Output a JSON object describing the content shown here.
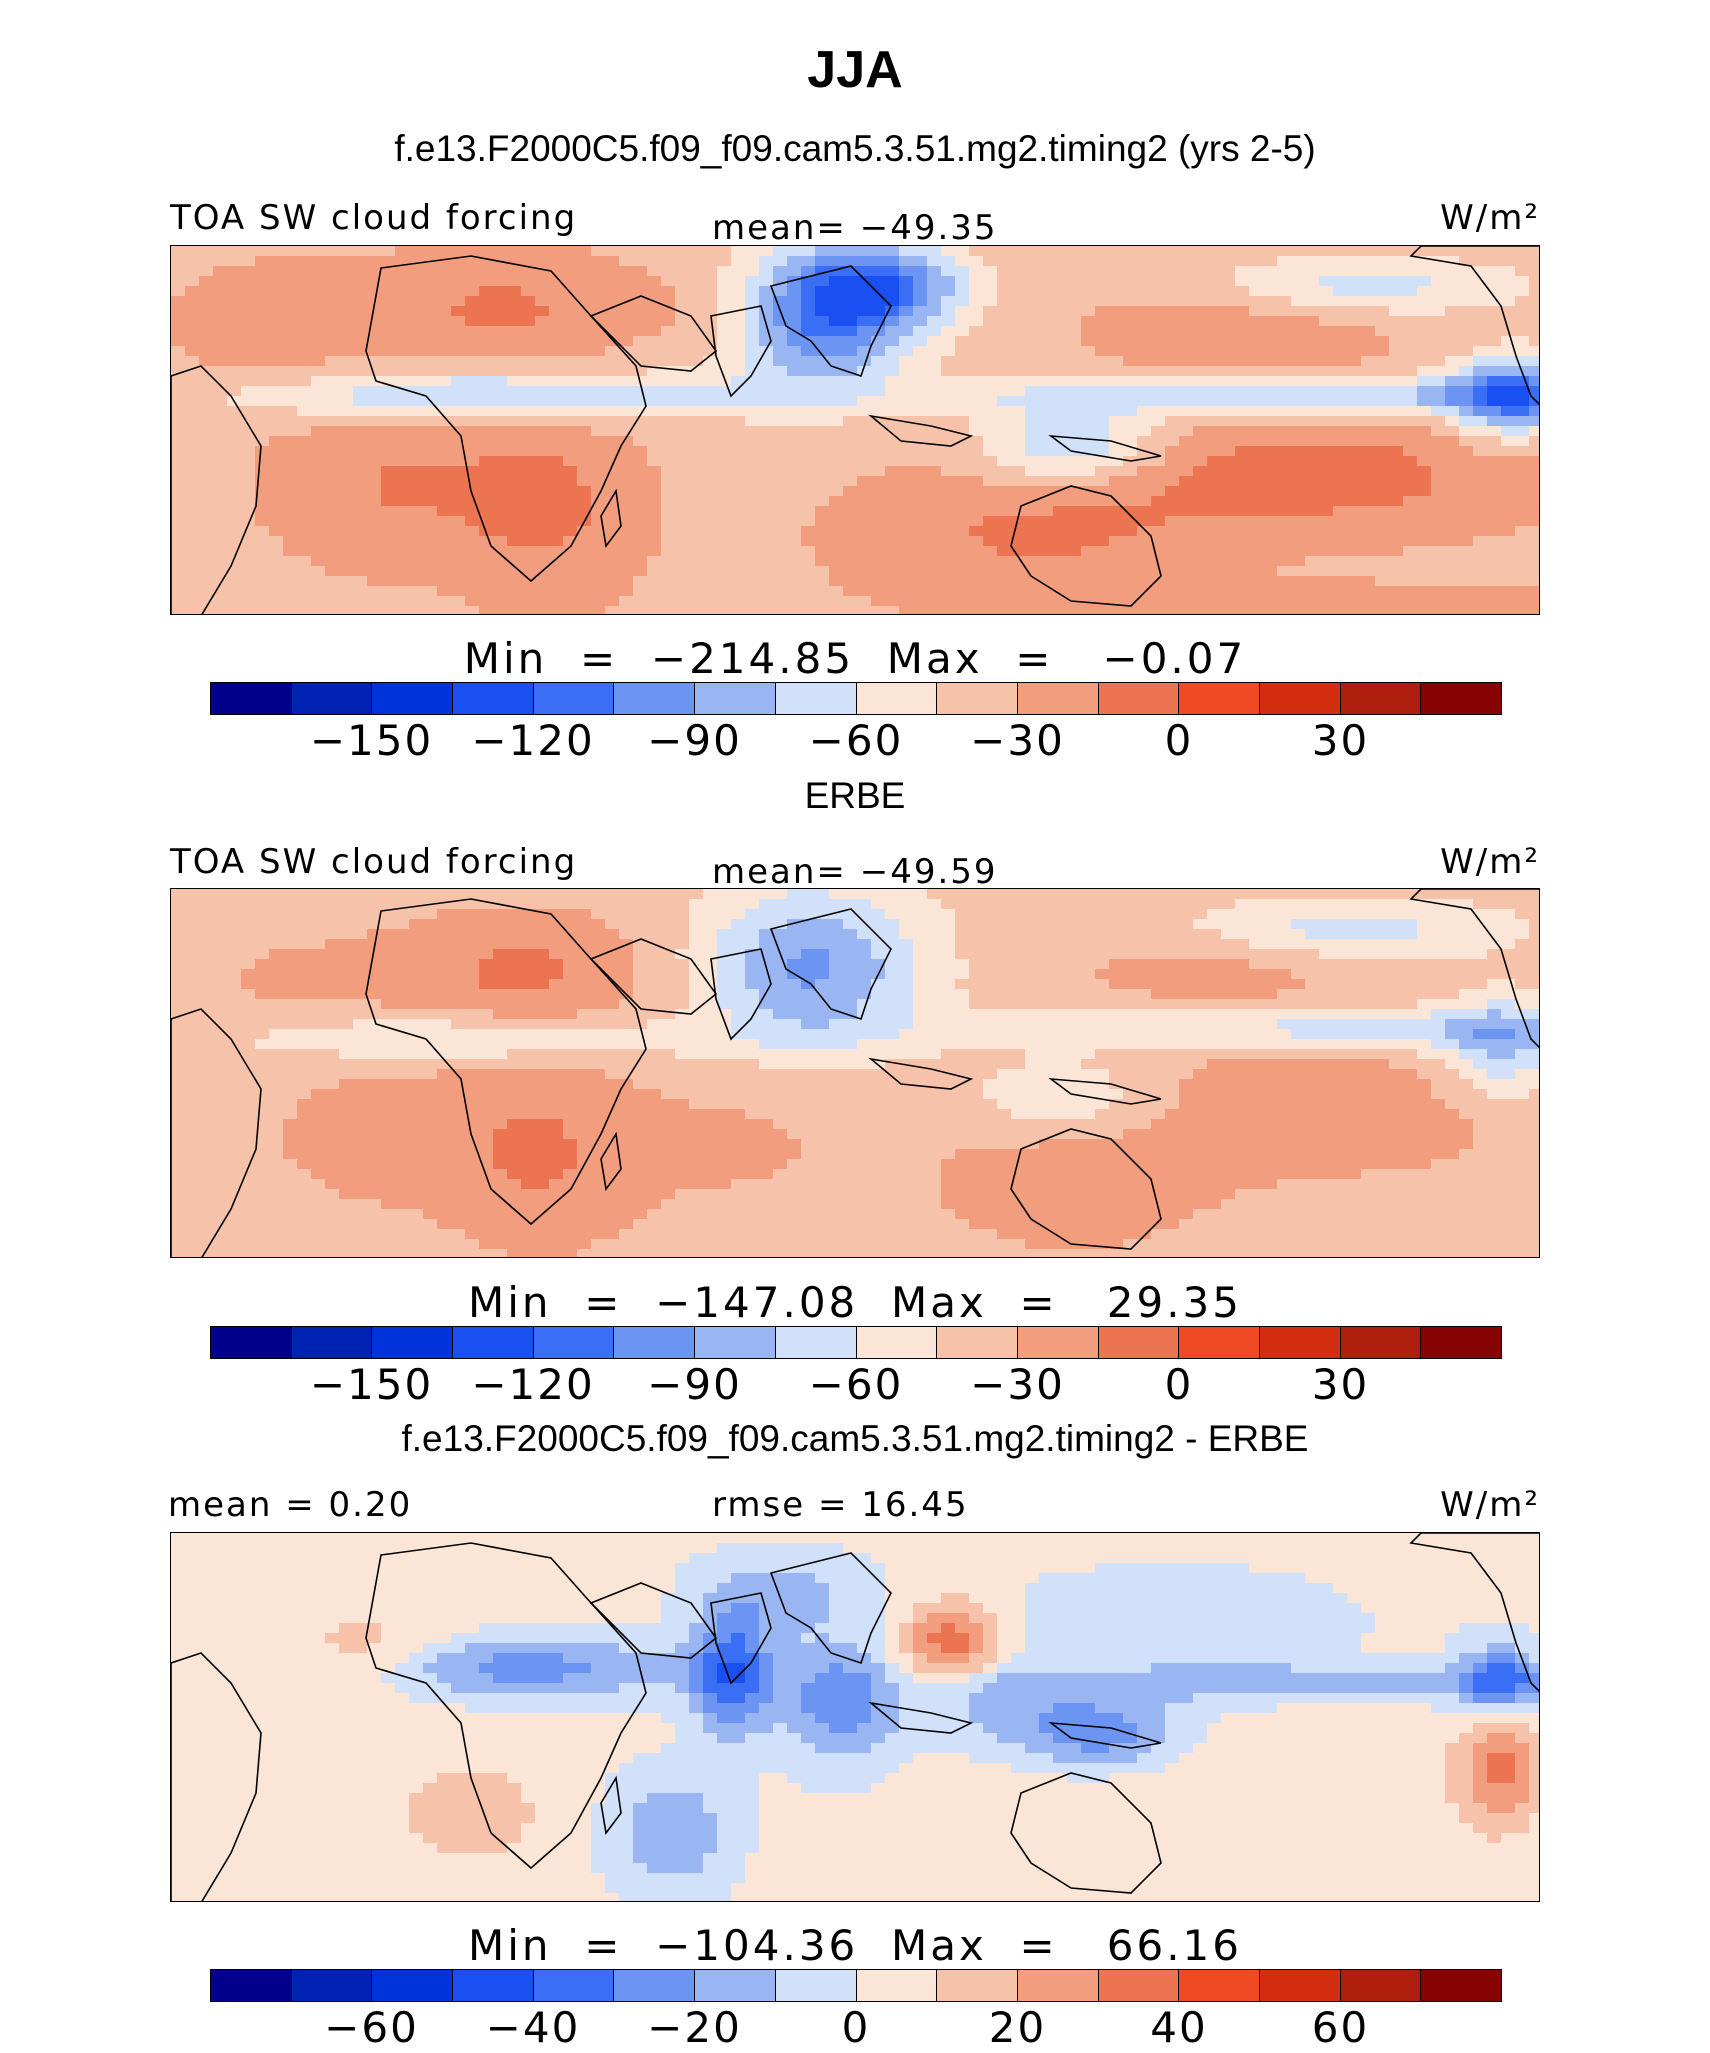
{
  "title": "JJA",
  "colorbar_colors": [
    "#00008c",
    "#0022b3",
    "#0033d9",
    "#1a4ff2",
    "#3a6ef5",
    "#6c94f2",
    "#9ab6f2",
    "#d1e1fa",
    "#fbe5d6",
    "#f7c2aa",
    "#f19d7e",
    "#ec7450",
    "#f04a24",
    "#d42e10",
    "#b01e0d",
    "#860404"
  ],
  "panels": [
    {
      "subtitle": "f.e13.F2000C5.f09_f09.cam5.3.51.mg2.timing2 (yrs 2-5)",
      "left_label": "TOA SW cloud forcing",
      "center_label": "mean= −49.35",
      "units_label": "W/m²",
      "minmax": "Min  =  −214.85  Max  =   −0.07",
      "ticks": [
        "−150",
        "−120",
        "−90",
        "−60",
        "−30",
        "0",
        "30"
      ],
      "field_mode": "model"
    },
    {
      "subtitle": "ERBE",
      "left_label": "TOA SW cloud forcing",
      "center_label": "mean= −49.59",
      "units_label": "W/m²",
      "minmax": "Min  =  −147.08  Max  =   29.35",
      "ticks": [
        "−150",
        "−120",
        "−90",
        "−60",
        "−30",
        "0",
        "30"
      ],
      "field_mode": "obs"
    },
    {
      "subtitle": "f.e13.F2000C5.f09_f09.cam5.3.51.mg2.timing2 - ERBE",
      "left_label": "mean =    0.20",
      "center_label": "rmse =   16.45",
      "units_label": "W/m²",
      "minmax": "Min  =  −104.36  Max  =   66.16",
      "ticks": [
        "−60",
        "−40",
        "−20",
        "0",
        "20",
        "40",
        "60"
      ],
      "field_mode": "diff"
    }
  ]
}
